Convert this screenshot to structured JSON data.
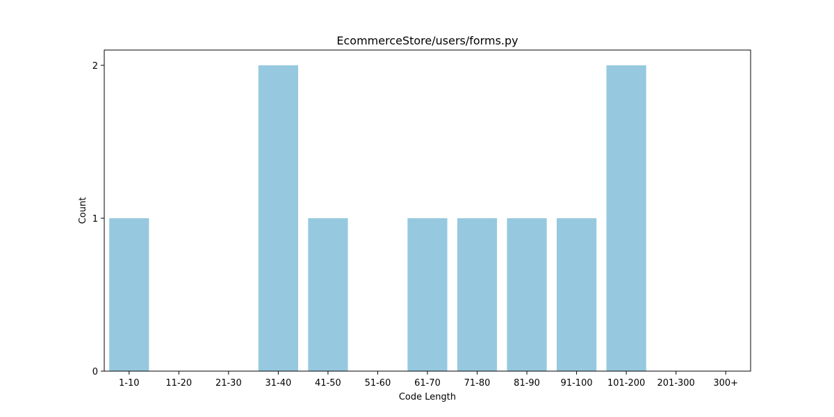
{
  "chart_data": {
    "type": "bar",
    "title": "EcommerceStore/users/forms.py",
    "xlabel": "Code Length",
    "ylabel": "Count",
    "categories": [
      "1-10",
      "11-20",
      "21-30",
      "31-40",
      "41-50",
      "51-60",
      "61-70",
      "71-80",
      "81-90",
      "91-100",
      "101-200",
      "201-300",
      "300+"
    ],
    "values": [
      1,
      0,
      0,
      2,
      1,
      0,
      1,
      1,
      1,
      1,
      2,
      0,
      0
    ],
    "ylim": [
      0,
      2.1
    ],
    "yticks": [
      0,
      1,
      2
    ],
    "grid": false,
    "legend": "none",
    "colors": {
      "bar": "#96c9df",
      "axis": "#000000",
      "background": "#ffffff"
    }
  }
}
